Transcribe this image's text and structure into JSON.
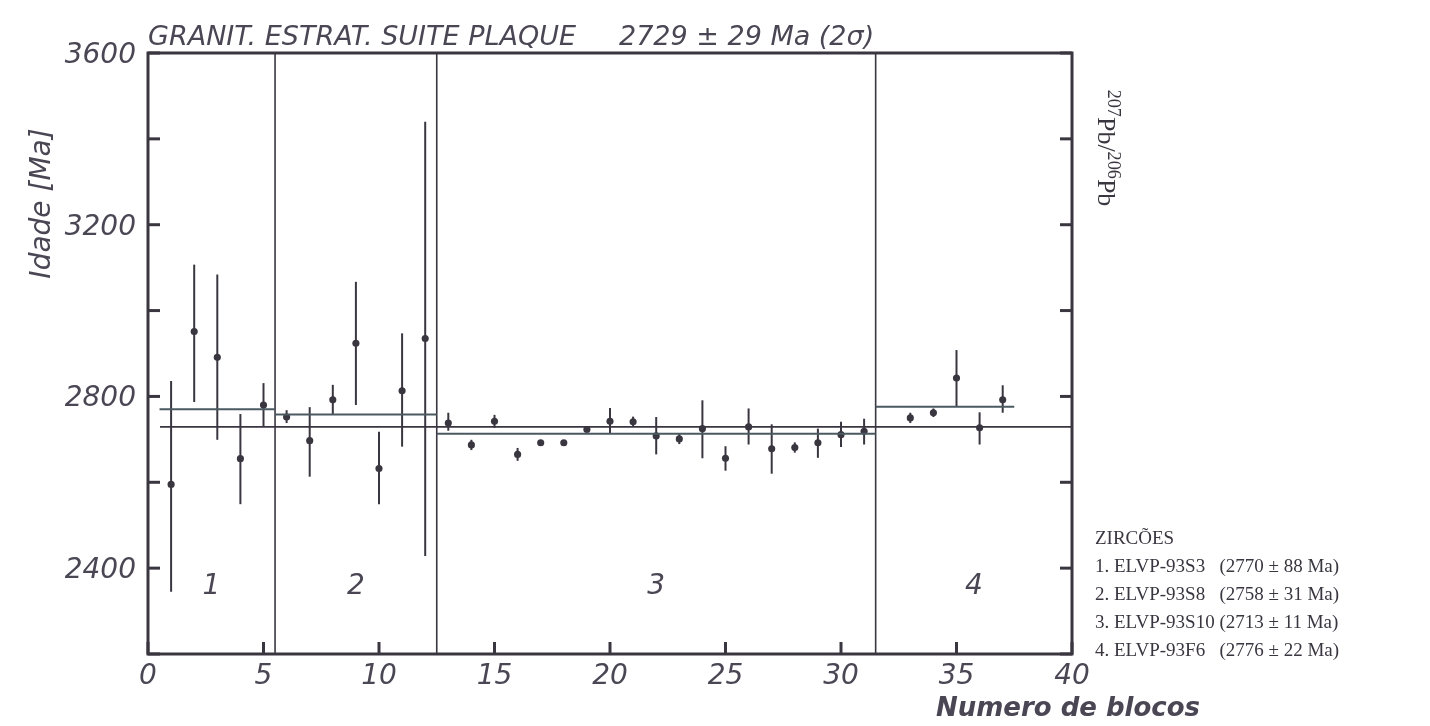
{
  "chart_data": {
    "type": "scatter",
    "title": "GRANIT. ESTRAT. SUITE PLAQUE     2729 ± 29 Ma (2σ)",
    "xlabel": "Numero de blocos",
    "ylabel": "Idade [Ma]",
    "y2label": "$^{207}$Pb/$^{206}$Pb",
    "xlim": [
      0,
      40
    ],
    "xticks": [
      0,
      5,
      10,
      15,
      20,
      25,
      30,
      35,
      40
    ],
    "ylim": [
      2200,
      3600
    ],
    "yticks": [
      {
        "value": 2200,
        "label": null
      },
      2400,
      {
        "value": 2600,
        "label": null
      },
      2800,
      {
        "value": 3000,
        "label": null
      },
      3200,
      {
        "value": 3400,
        "label": null
      },
      3600
    ],
    "grid": false,
    "series": [
      {
        "marker": "circle",
        "color": "#3a3640",
        "x": [
          1,
          2,
          3,
          4,
          5,
          6,
          7,
          8,
          9,
          10,
          11,
          12,
          13,
          14,
          15,
          16,
          17,
          18,
          19,
          20,
          21,
          22,
          23,
          24,
          25,
          26,
          27,
          28,
          29,
          30,
          31,
          33,
          34,
          35,
          36,
          37
        ],
        "values": [
          2595,
          2951,
          2891,
          2655,
          2780,
          2752,
          2697,
          2792,
          2924,
          2632,
          2813,
          2935,
          2738,
          2687,
          2742,
          2665,
          2692,
          2692,
          2723,
          2742,
          2741,
          2708,
          2701,
          2725,
          2656,
          2729,
          2678,
          2681,
          2692,
          2711,
          2719,
          2750,
          2762,
          2843,
          2727,
          2792
        ],
        "errors": [
          [
            2345,
            2836
          ],
          [
            2787,
            3107
          ],
          [
            2699,
            3084
          ],
          [
            2549,
            2759
          ],
          [
            2729,
            2831
          ],
          [
            2738,
            2768
          ],
          [
            2613,
            2775
          ],
          [
            2757,
            2827
          ],
          [
            2780,
            3067
          ],
          [
            2549,
            2718
          ],
          [
            2683,
            2947
          ],
          [
            2428,
            3440
          ],
          [
            2720,
            2762
          ],
          [
            2675,
            2699
          ],
          [
            2727,
            2757
          ],
          [
            2650,
            2680
          ],
          [
            2687,
            2697
          ],
          [
            2687,
            2697
          ],
          [
            2720,
            2726
          ],
          [
            2715,
            2773
          ],
          [
            2729,
            2753
          ],
          [
            2665,
            2752
          ],
          [
            2689,
            2713
          ],
          [
            2656,
            2791
          ],
          [
            2627,
            2684
          ],
          [
            2688,
            2772
          ],
          [
            2620,
            2735
          ],
          [
            2669,
            2693
          ],
          [
            2657,
            2725
          ],
          [
            2682,
            2741
          ],
          [
            2688,
            2748
          ],
          [
            2738,
            2762
          ],
          [
            2752,
            2772
          ],
          [
            2776,
            2908
          ],
          [
            2688,
            2763
          ],
          [
            2762,
            2826
          ]
        ]
      },
      {
        "type": "line",
        "color": "#4a5a60",
        "x": [
          0.5,
          5.5
        ],
        "values": [
          2770,
          2770
        ]
      },
      {
        "type": "line",
        "color": "#4a5a60",
        "x": [
          5.5,
          12.5
        ],
        "values": [
          2758,
          2758
        ]
      },
      {
        "type": "line",
        "color": "#4a5a60",
        "x": [
          12.5,
          31.5
        ],
        "values": [
          2713,
          2713
        ]
      },
      {
        "type": "line",
        "color": "#4a5a60",
        "x": [
          31.5,
          37.5
        ],
        "values": [
          2776,
          2776
        ]
      }
    ],
    "ref_lines": [
      {
        "axis": "y",
        "value": 2729,
        "color": "#3a3640"
      },
      {
        "axis": "x",
        "value": 5.5,
        "color": "#3a3640"
      },
      {
        "axis": "x",
        "value": 12.5,
        "color": "#3a3640"
      },
      {
        "axis": "x",
        "value": 31.5,
        "color": "#3a3640"
      }
    ],
    "annotations": [
      "1",
      "2",
      "3",
      "4",
      "ZIRCÕES",
      "1. ELVP-93S3   (2770 ± 88 Ma)",
      "2. ELVP-93S8   (2758 ± 31 Ma)",
      "3. ELVP-93S10 (2713 ± 11 Ma)",
      "4. ELVP-93F6   (2776 ± 22 Ma)"
    ]
  }
}
